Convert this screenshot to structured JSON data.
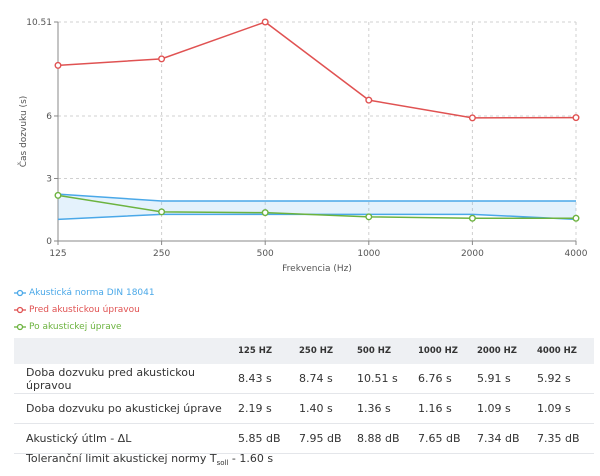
{
  "chart_data": {
    "type": "line",
    "categories": [
      "125",
      "250",
      "500",
      "1000",
      "2000",
      "4000"
    ],
    "xlabel": "Frekvencia (Hz)",
    "ylabel": "Čas dozvuku (s)",
    "ylim": [
      0,
      10.51
    ],
    "yticks": [
      "0",
      "3",
      "6",
      "10.51"
    ],
    "grid": true,
    "legend_position": "bottom-left",
    "series": [
      {
        "name": "Akustická norma DIN 18041",
        "color": "#4aa8e8",
        "marker": false,
        "upper": [
          2.25,
          1.92,
          1.92,
          1.92,
          1.92,
          1.92
        ],
        "lower": [
          1.04,
          1.28,
          1.28,
          1.28,
          1.28,
          1.04
        ]
      },
      {
        "name": "Pred akustickou úpravou",
        "color": "#e05252",
        "marker": true,
        "values": [
          8.43,
          8.74,
          10.51,
          6.76,
          5.91,
          5.92
        ]
      },
      {
        "name": "Po akustickej úprave",
        "color": "#6cb33f",
        "marker": true,
        "values": [
          2.19,
          1.4,
          1.36,
          1.16,
          1.09,
          1.09
        ]
      }
    ]
  },
  "table": {
    "headers": [
      "",
      "125 HZ",
      "250 HZ",
      "500 HZ",
      "1000 HZ",
      "2000 HZ",
      "4000 HZ"
    ],
    "rows": [
      [
        "Doba dozvuku pred akustickou úpravou",
        "8.43 s",
        "8.74 s",
        "10.51 s",
        "6.76 s",
        "5.91 s",
        "5.92 s"
      ],
      [
        "Doba dozvuku po akustickej úprave",
        "2.19 s",
        "1.40 s",
        "1.36 s",
        "1.16 s",
        "1.09 s",
        "1.09 s"
      ],
      [
        "Akustický útlm - ΔL",
        "5.85 dB",
        "7.95 dB",
        "8.88 dB",
        "7.65 dB",
        "7.34 dB",
        "7.35 dB"
      ]
    ]
  },
  "tolerance": {
    "prefix": "Toleranční limit akustickej normy T",
    "subscript": "soll",
    "suffix": " - 1.60 s"
  }
}
